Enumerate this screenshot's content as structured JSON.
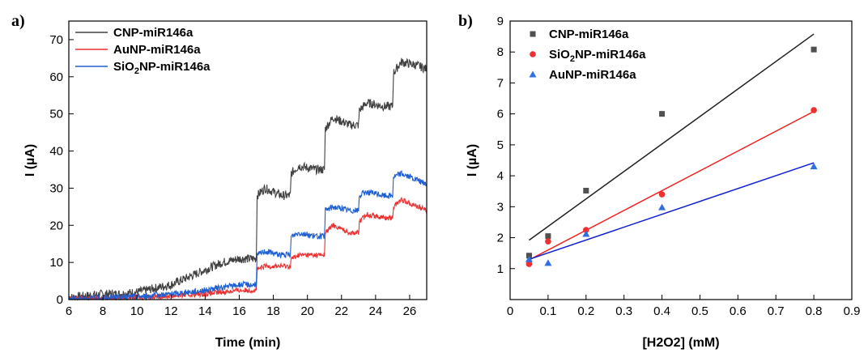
{
  "chart_data": [
    {
      "type": "line",
      "panel_label": "a)",
      "xlabel": "Time (min)",
      "ylabel": "I (µA)",
      "xlim": [
        6,
        27
      ],
      "ylim": [
        0,
        75
      ],
      "x_ticks": [
        "6",
        "8",
        "10",
        "12",
        "14",
        "16",
        "18",
        "20",
        "22",
        "24",
        "26"
      ],
      "y_ticks": [
        "0",
        "10",
        "20",
        "30",
        "40",
        "50",
        "60",
        "70"
      ],
      "grid": false,
      "legend": "top-left",
      "series": [
        {
          "name": "CNP-miR146a",
          "legend_main": "CNP-miR146a",
          "legend_sub": "",
          "legend_rest": "",
          "color": "#404040",
          "points": [
            [
              6,
              0.5
            ],
            [
              7,
              1
            ],
            [
              8,
              1.5
            ],
            [
              9,
              1.5
            ],
            [
              10,
              2
            ],
            [
              11,
              3
            ],
            [
              12,
              4
            ],
            [
              13,
              6
            ],
            [
              14,
              8
            ],
            [
              15,
              10
            ],
            [
              16,
              11
            ],
            [
              17,
              11
            ],
            [
              17.05,
              28
            ],
            [
              17.5,
              30
            ],
            [
              18.5,
              28
            ],
            [
              19,
              28
            ],
            [
              19.05,
              34
            ],
            [
              19.5,
              36
            ],
            [
              20.5,
              35
            ],
            [
              21,
              35
            ],
            [
              21.05,
              46
            ],
            [
              21.5,
              49
            ],
            [
              22.5,
              47
            ],
            [
              23,
              47
            ],
            [
              23.05,
              51
            ],
            [
              23.5,
              53
            ],
            [
              24.5,
              52
            ],
            [
              25,
              52
            ],
            [
              25.05,
              61
            ],
            [
              25.5,
              64
            ],
            [
              26.5,
              63
            ],
            [
              27,
              62
            ]
          ]
        },
        {
          "name": "AuNP-miR146a",
          "legend_main": "AuNP-miR146a",
          "legend_sub": "",
          "legend_rest": "",
          "color": "#ee3030",
          "points": [
            [
              6,
              0.2
            ],
            [
              8,
              0.4
            ],
            [
              10,
              0.6
            ],
            [
              12,
              1
            ],
            [
              14,
              1.5
            ],
            [
              16,
              2.5
            ],
            [
              17,
              2.5
            ],
            [
              17.05,
              8
            ],
            [
              17.5,
              9
            ],
            [
              18.5,
              9
            ],
            [
              19,
              9
            ],
            [
              19.05,
              11
            ],
            [
              19.5,
              12
            ],
            [
              20.5,
              12
            ],
            [
              21,
              12
            ],
            [
              21.05,
              18
            ],
            [
              21.5,
              20
            ],
            [
              22.5,
              18
            ],
            [
              23,
              18
            ],
            [
              23.05,
              21
            ],
            [
              23.5,
              23
            ],
            [
              24.5,
              22
            ],
            [
              25,
              22
            ],
            [
              25.05,
              25
            ],
            [
              25.5,
              27
            ],
            [
              26.5,
              25
            ],
            [
              27,
              24
            ]
          ]
        },
        {
          "name": "SiO2NP-miR146a",
          "legend_main": "SiO",
          "legend_sub": "2",
          "legend_rest": "NP-miR146a",
          "color": "#1f5fd0",
          "points": [
            [
              6,
              0.2
            ],
            [
              8,
              0.5
            ],
            [
              10,
              0.8
            ],
            [
              12,
              1.5
            ],
            [
              14,
              2.5
            ],
            [
              16,
              4
            ],
            [
              17,
              4
            ],
            [
              17.05,
              12
            ],
            [
              17.5,
              13
            ],
            [
              18.5,
              12
            ],
            [
              19,
              12
            ],
            [
              19.05,
              17
            ],
            [
              19.5,
              18
            ],
            [
              20.5,
              17
            ],
            [
              21,
              17
            ],
            [
              21.05,
              24
            ],
            [
              21.5,
              25
            ],
            [
              22.5,
              24
            ],
            [
              23,
              24
            ],
            [
              23.05,
              28
            ],
            [
              23.5,
              29
            ],
            [
              24.5,
              28
            ],
            [
              25,
              28
            ],
            [
              25.05,
              33
            ],
            [
              25.5,
              34
            ],
            [
              26.5,
              32
            ],
            [
              27,
              31
            ]
          ]
        }
      ]
    },
    {
      "type": "scatter",
      "panel_label": "b)",
      "xlabel": "[H2O2] (mM)",
      "ylabel": "I (µA)",
      "xlim": [
        0,
        0.9
      ],
      "ylim": [
        0,
        9
      ],
      "x_ticks": [
        "0",
        "0.1",
        "0.2",
        "0.3",
        "0.4",
        "0.5",
        "0.6",
        "0.7",
        "0.8",
        "0.9"
      ],
      "y_ticks": [
        "1",
        "2",
        "3",
        "4",
        "5",
        "6",
        "7",
        "8",
        "9"
      ],
      "grid": false,
      "legend": "top-left",
      "series": [
        {
          "name": "CNP-miR146a",
          "legend_main": "CNP-miR146a",
          "legend_sub": "",
          "legend_rest": "",
          "marker": "square",
          "color": "#505050",
          "line_color": "#202020",
          "x": [
            0.05,
            0.1,
            0.2,
            0.4,
            0.8
          ],
          "y": [
            1.42,
            2.05,
            3.52,
            6.0,
            8.08
          ],
          "fit": [
            [
              0.05,
              1.92
            ],
            [
              0.8,
              8.58
            ]
          ]
        },
        {
          "name": "SiO2NP-miR146a",
          "legend_main": "SiO",
          "legend_sub": "2",
          "legend_rest": "NP-miR146a",
          "marker": "circle",
          "color": "#ee3030",
          "line_color": "#ee2020",
          "x": [
            0.05,
            0.1,
            0.2,
            0.4,
            0.8
          ],
          "y": [
            1.15,
            1.88,
            2.25,
            3.4,
            6.12
          ],
          "fit": [
            [
              0.05,
              1.28
            ],
            [
              0.8,
              6.08
            ]
          ]
        },
        {
          "name": "AuNP-miR146a",
          "legend_main": "AuNP-miR146a",
          "legend_sub": "",
          "legend_rest": "",
          "marker": "triangle",
          "color": "#2f6fe0",
          "line_color": "#1020d0",
          "x": [
            0.05,
            0.1,
            0.2,
            0.4,
            0.8
          ],
          "y": [
            1.3,
            1.18,
            2.12,
            2.98,
            4.3
          ],
          "fit": [
            [
              0.05,
              1.3
            ],
            [
              0.8,
              4.42
            ]
          ]
        }
      ]
    }
  ]
}
